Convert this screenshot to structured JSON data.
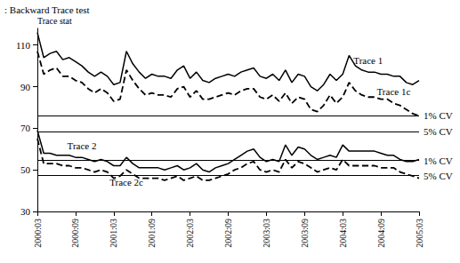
{
  "chart_data": {
    "type": "line",
    "title": ": Backward Trace test",
    "y_label": "Trace stat",
    "categories": [
      "2000:03",
      null,
      null,
      null,
      null,
      null,
      "2000:09",
      null,
      null,
      null,
      null,
      null,
      "2001:03",
      null,
      null,
      null,
      null,
      null,
      "2001:09",
      null,
      null,
      null,
      null,
      null,
      "2002:03",
      null,
      null,
      null,
      null,
      null,
      "2002:09",
      null,
      null,
      null,
      null,
      null,
      "2003:03",
      null,
      null,
      null,
      null,
      null,
      "2003:09",
      null,
      null,
      null,
      null,
      null,
      "2004:03",
      null,
      null,
      null,
      null,
      null,
      "2004:09",
      null,
      null,
      null,
      null,
      null,
      "2005:03"
    ],
    "series": [
      {
        "name": "Trace 1",
        "color": "#000000",
        "line_style": "solid",
        "values": [
          116,
          104,
          106,
          107,
          103,
          104,
          102,
          100,
          97,
          95,
          97,
          95,
          91,
          92,
          107,
          101,
          97,
          94,
          96,
          95,
          95,
          94,
          98,
          100,
          94,
          97,
          93,
          92,
          94,
          95,
          96,
          95,
          97,
          98,
          99,
          95,
          94,
          96,
          93,
          98,
          92,
          96,
          95,
          90,
          88,
          91,
          96,
          93,
          96,
          105,
          100,
          98,
          97,
          97,
          96,
          96,
          95,
          95,
          92,
          91,
          93
        ]
      },
      {
        "name": "Trace 1c",
        "color": "#000000",
        "line_style": "dashed",
        "values": [
          107,
          96,
          98,
          99,
          95,
          95,
          93,
          92,
          89,
          87,
          89,
          87,
          83,
          84,
          98,
          93,
          89,
          86,
          87,
          86,
          86,
          85,
          89,
          90,
          85,
          88,
          84,
          84,
          85,
          86,
          87,
          86,
          88,
          89,
          89,
          85,
          84,
          86,
          83,
          87,
          82,
          85,
          84,
          79,
          78,
          81,
          86,
          82,
          85,
          92,
          88,
          86,
          85,
          85,
          84,
          84,
          82,
          81,
          79,
          77,
          76
        ]
      },
      {
        "name": "Trace 2",
        "color": "#000000",
        "line_style": "solid",
        "values": [
          69,
          58,
          58,
          57,
          57,
          57,
          56,
          56,
          55,
          54,
          55,
          54,
          52,
          52,
          56,
          53,
          51,
          51,
          51,
          51,
          50,
          51,
          52,
          50,
          51,
          53,
          50,
          49,
          51,
          52,
          53,
          55,
          57,
          59,
          60,
          56,
          54,
          55,
          54,
          62,
          57,
          61,
          60,
          57,
          55,
          56,
          57,
          56,
          62,
          59,
          59,
          59,
          59,
          59,
          58,
          57,
          57,
          55,
          54,
          54,
          55
        ]
      },
      {
        "name": "Trace 2c",
        "color": "#000000",
        "line_style": "dashed",
        "values": [
          65,
          53,
          53,
          53,
          52,
          52,
          51,
          51,
          50,
          49,
          50,
          49,
          46,
          47,
          50,
          48,
          46,
          46,
          46,
          46,
          45,
          46,
          47,
          45,
          46,
          47,
          45,
          45,
          46,
          47,
          48,
          50,
          51,
          53,
          54,
          50,
          49,
          50,
          49,
          55,
          51,
          54,
          53,
          51,
          49,
          50,
          51,
          50,
          55,
          52,
          52,
          52,
          52,
          52,
          51,
          51,
          51,
          49,
          48,
          47,
          46
        ]
      }
    ],
    "annotations": [
      {
        "text": "1% CV",
        "y": 76
      },
      {
        "text": "5% CV",
        "y": 68.5
      },
      {
        "text": "1% CV",
        "y": 54.5
      },
      {
        "text": "5% CV",
        "y": 47.2
      }
    ],
    "ylim": [
      30,
      118
    ],
    "yticks": [
      30,
      50,
      70,
      90,
      110
    ],
    "grid": false,
    "legend": "none"
  }
}
